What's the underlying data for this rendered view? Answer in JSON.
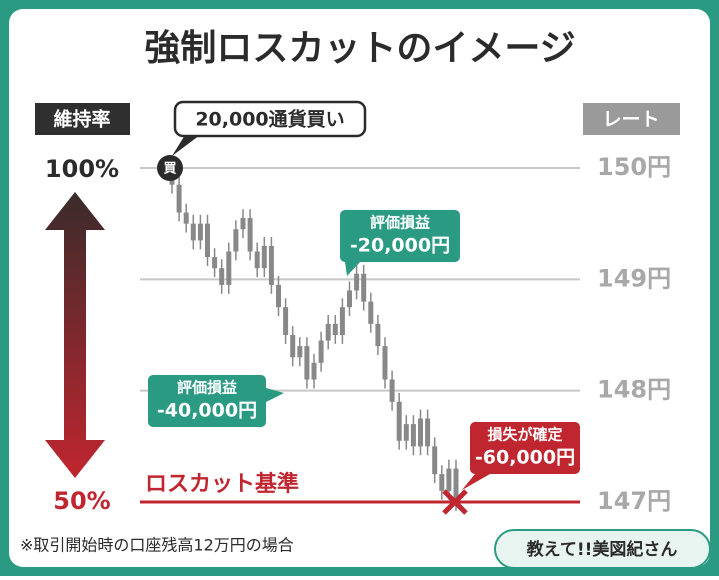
{
  "chart_data": {
    "type": "candlestick",
    "title": "強制ロスカットのイメージ",
    "left_axis_title": "維持率",
    "left_top_label": "100%",
    "left_bottom_label": "50%",
    "right_axis_title": "レート",
    "buy_label": "20,000通貨買い",
    "buy_marker": "買",
    "losscut_label": "ロスカット基準",
    "footnote": "※取引開始時の口座残高12万円の場合",
    "logo": "教えて!!美図紀さん",
    "annotations": [
      {
        "title": "評価損益",
        "text": "-20,000円"
      },
      {
        "title": "評価損益",
        "text": "-40,000円"
      },
      {
        "title": "損失が確定",
        "text": "-60,000円"
      }
    ],
    "open": [
      150,
      149.85,
      149.6,
      149.5,
      149.35,
      149.5,
      149.2,
      149.1,
      148.95,
      149.25,
      149.45,
      149.55,
      149.25,
      149.1,
      149.3,
      148.95,
      148.75,
      148.5,
      148.3,
      148.4,
      148.1,
      148.25,
      148.45,
      148.6,
      148.5,
      148.75,
      148.9,
      149.05,
      148.8,
      148.6,
      148.4,
      148.1,
      147.9,
      147.55,
      147.7,
      147.5,
      147.75,
      147.5,
      147.25,
      147.1,
      147.3
    ],
    "high": [
      150.08,
      149.93,
      149.68,
      149.58,
      149.58,
      149.58,
      149.28,
      149.18,
      149.33,
      149.53,
      149.63,
      149.63,
      149.33,
      149.38,
      149.38,
      149.03,
      148.83,
      148.58,
      148.48,
      148.48,
      148.33,
      148.53,
      148.68,
      148.68,
      148.83,
      148.98,
      149.13,
      149.13,
      148.88,
      148.68,
      148.48,
      148.18,
      147.98,
      147.78,
      147.78,
      147.83,
      147.83,
      147.58,
      147.33,
      147.38,
      147.38
    ],
    "low": [
      149.77,
      149.52,
      149.42,
      149.27,
      149.27,
      149.12,
      149.02,
      148.87,
      148.87,
      149.17,
      149.37,
      149.17,
      149.02,
      149.02,
      148.87,
      148.67,
      148.42,
      148.22,
      148.22,
      148.02,
      148.02,
      148.17,
      148.37,
      148.42,
      148.42,
      148.67,
      148.82,
      148.72,
      148.52,
      148.32,
      148.02,
      147.82,
      147.47,
      147.47,
      147.42,
      147.42,
      147.42,
      147.17,
      147.02,
      147.02,
      146.92
    ],
    "close": [
      149.85,
      149.6,
      149.5,
      149.35,
      149.5,
      149.2,
      149.1,
      148.95,
      149.25,
      149.45,
      149.55,
      149.25,
      149.1,
      149.3,
      148.95,
      148.75,
      148.5,
      148.3,
      148.4,
      148.1,
      148.25,
      148.45,
      148.6,
      148.5,
      148.75,
      148.9,
      149.05,
      148.8,
      148.6,
      148.4,
      148.1,
      147.9,
      147.55,
      147.7,
      147.5,
      147.75,
      147.5,
      147.25,
      147.1,
      147.3,
      147.0
    ],
    "color": "#888888",
    "ylim": [
      147,
      150
    ],
    "yticks": [
      {
        "value": 150,
        "label": "150円"
      },
      {
        "value": 149,
        "label": "149円"
      },
      {
        "value": 148,
        "label": "148円"
      },
      {
        "value": 147,
        "label": "147円"
      }
    ],
    "grid": true
  }
}
